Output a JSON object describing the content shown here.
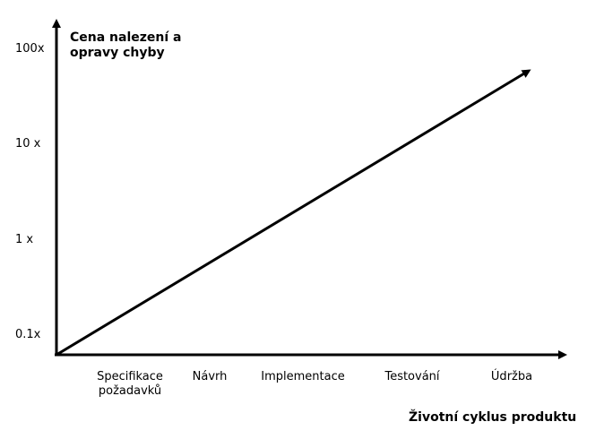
{
  "chart_data": {
    "type": "line",
    "ylabel_lines": [
      "Cena nalezení a",
      "opravy chyby"
    ],
    "xlabel": "Životní cyklus produktu",
    "y_tick_labels": [
      "0.1x",
      "1 x",
      "10 x",
      "100x"
    ],
    "y_tick_values": [
      0.1,
      1,
      10,
      100
    ],
    "y_scale": "log",
    "categories": [
      "Specifikace požadavků",
      "Návrh",
      "Implementace",
      "Testování",
      "Údržba"
    ],
    "category_label_lines": [
      [
        "Specifikace",
        "požadavků"
      ],
      [
        "Návrh"
      ],
      [
        "Implementace"
      ],
      [
        "Testování"
      ],
      [
        "Údržba"
      ]
    ],
    "series": [
      {
        "x_start": 0.0,
        "y_start": 0.1,
        "x_end": 4.5,
        "y_end": 100
      }
    ],
    "grid": false,
    "colors": {
      "axis": "#000000",
      "line": "#000000"
    }
  }
}
